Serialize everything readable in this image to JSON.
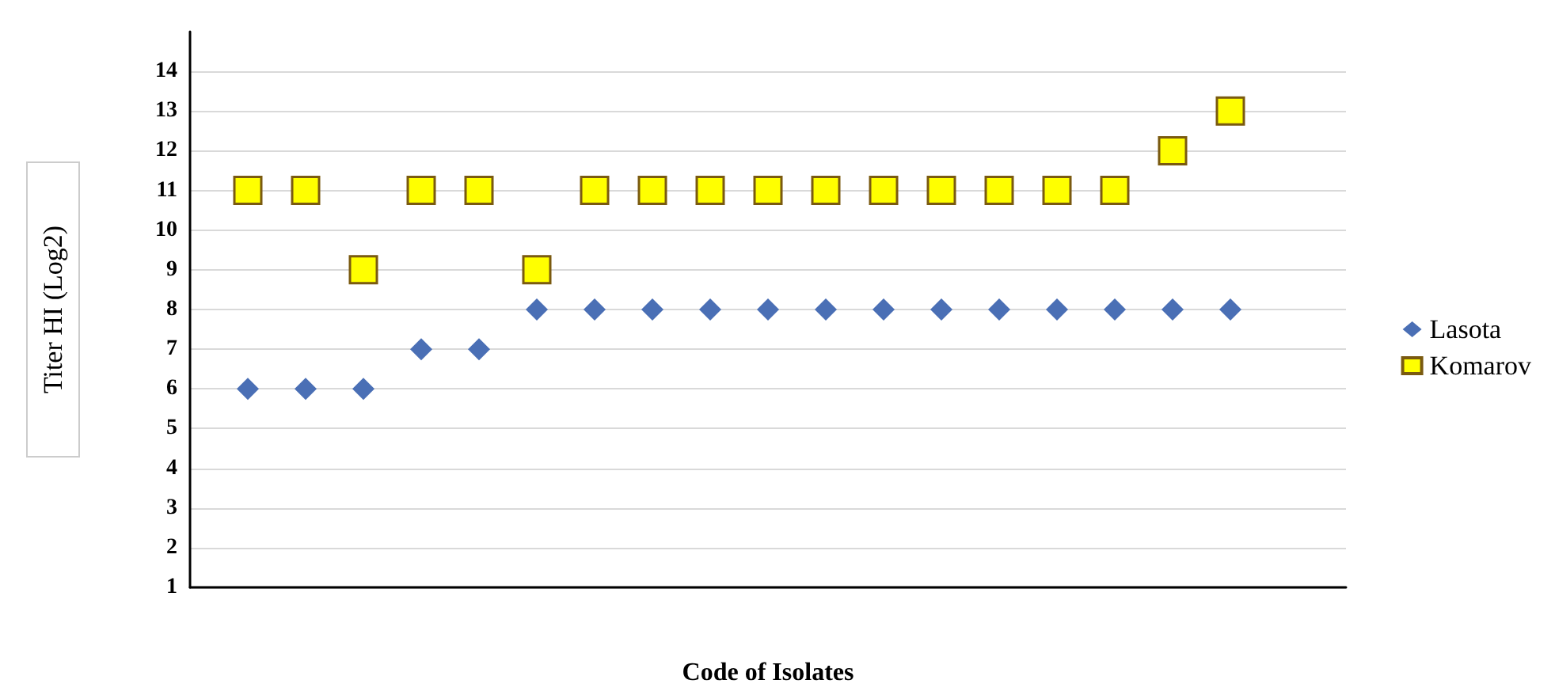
{
  "chart_data": {
    "type": "scatter",
    "xlabel": "Code of Isolates",
    "ylabel": "Titer HI (Log2)",
    "categories": [
      null,
      null,
      null,
      null,
      null,
      null,
      null,
      null,
      null,
      null,
      null,
      null,
      null,
      null,
      null,
      null,
      null,
      null,
      null,
      null,
      null
    ],
    "series": [
      {
        "name": "Lasota",
        "color": "#4a6fb5",
        "marker": "diamond",
        "values": [
          null,
          6,
          6,
          6,
          7,
          7,
          8,
          8,
          8,
          8,
          8,
          8,
          8,
          8,
          8,
          8,
          8,
          8,
          8,
          null,
          null
        ]
      },
      {
        "name": "Komarov",
        "color": "#ffff00",
        "marker": "square",
        "values": [
          null,
          11,
          11,
          9,
          11,
          11,
          9,
          11,
          11,
          11,
          11,
          11,
          11,
          11,
          11,
          11,
          11,
          12,
          13,
          null,
          null
        ]
      }
    ],
    "ylim": [
      1,
      15
    ],
    "yticks": [
      1,
      2,
      3,
      4,
      5,
      6,
      7,
      8,
      9,
      10,
      11,
      12,
      13,
      14
    ],
    "grid": "y",
    "legend": "right",
    "tick_labels": "y"
  }
}
